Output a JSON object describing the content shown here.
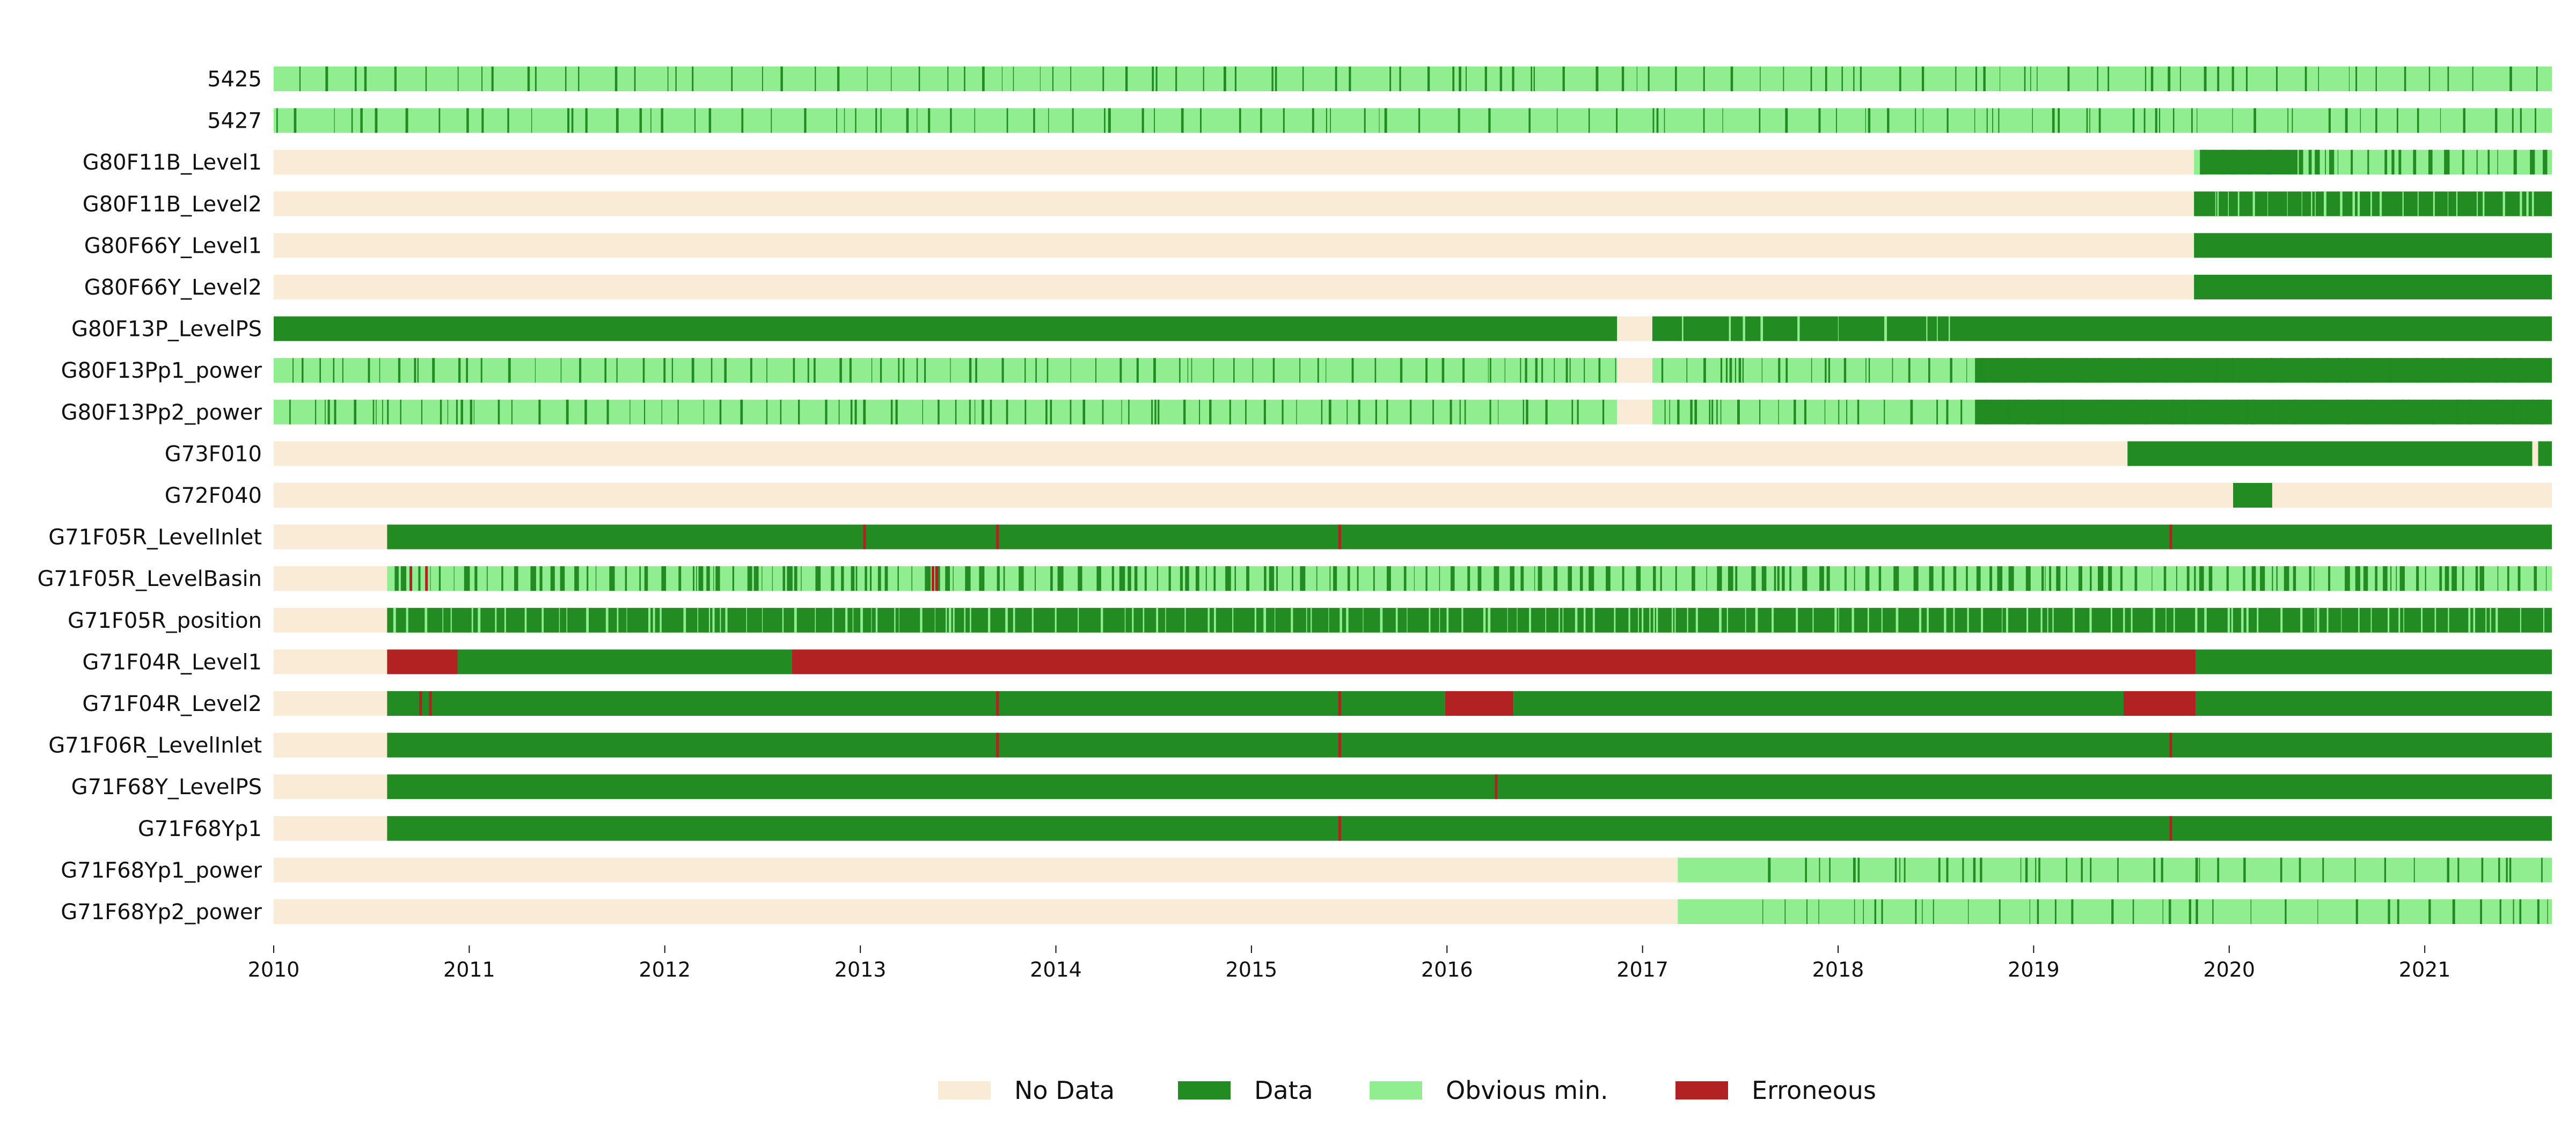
{
  "chart_data": {
    "type": "timeline",
    "xlabel": "",
    "ylabel": "",
    "x_range": [
      2010.0,
      2021.65
    ],
    "x_ticks": [
      "2010",
      "2011",
      "2012",
      "2013",
      "2014",
      "2015",
      "2016",
      "2017",
      "2018",
      "2019",
      "2020",
      "2021"
    ],
    "grid": false,
    "legend_position": "bottom-center",
    "legend": [
      {
        "key": "nodata",
        "label": "No Data",
        "color": "#faebd7"
      },
      {
        "key": "data",
        "label": "Data",
        "color": "#228b22"
      },
      {
        "key": "obvmin",
        "label": "Obvious min.",
        "color": "#90ee90"
      },
      {
        "key": "err",
        "label": "Erroneous",
        "color": "#b22222"
      }
    ],
    "series": [
      {
        "name": "5425",
        "segments": [
          [
            2010.0,
            2021.65,
            "obvmin"
          ]
        ],
        "texture": "data",
        "texture_density": 0.2
      },
      {
        "name": "5427",
        "segments": [
          [
            2010.0,
            2021.65,
            "obvmin"
          ]
        ],
        "texture": "data",
        "texture_density": 0.2
      },
      {
        "name": "G80F11B_Level1",
        "segments": [
          [
            2010.0,
            2019.82,
            "nodata"
          ],
          [
            2019.82,
            2019.85,
            "obvmin"
          ],
          [
            2019.85,
            2020.35,
            "data"
          ],
          [
            2020.35,
            2021.65,
            "obvmin"
          ]
        ],
        "texture": "data",
        "texture_density": 0.5,
        "texture_from": 2019.82
      },
      {
        "name": "G80F11B_Level2",
        "segments": [
          [
            2010.0,
            2019.82,
            "nodata"
          ],
          [
            2019.82,
            2021.65,
            "data"
          ]
        ],
        "texture": "obvmin",
        "texture_density": 0.35,
        "texture_from": 2019.82
      },
      {
        "name": "G80F66Y_Level1",
        "segments": [
          [
            2010.0,
            2019.82,
            "nodata"
          ],
          [
            2019.82,
            2021.65,
            "data"
          ]
        ]
      },
      {
        "name": "G80F66Y_Level2",
        "segments": [
          [
            2010.0,
            2019.82,
            "nodata"
          ],
          [
            2019.82,
            2021.65,
            "data"
          ]
        ]
      },
      {
        "name": "G80F13P_LevelPS",
        "segments": [
          [
            2010.0,
            2016.87,
            "data"
          ],
          [
            2016.87,
            2017.05,
            "nodata"
          ],
          [
            2017.05,
            2021.65,
            "data"
          ]
        ],
        "texture": "obvmin",
        "texture_density": 0.15,
        "texture_from": 2017.05,
        "texture_to": 2018.7
      },
      {
        "name": "G80F13Pp1_power",
        "segments": [
          [
            2010.0,
            2016.87,
            "obvmin"
          ],
          [
            2016.87,
            2017.05,
            "nodata"
          ],
          [
            2017.05,
            2018.7,
            "obvmin"
          ],
          [
            2018.7,
            2021.65,
            "data"
          ]
        ],
        "texture": "data",
        "texture_density": 0.3
      },
      {
        "name": "G80F13Pp2_power",
        "segments": [
          [
            2010.0,
            2016.87,
            "obvmin"
          ],
          [
            2016.87,
            2017.05,
            "nodata"
          ],
          [
            2017.05,
            2018.7,
            "obvmin"
          ],
          [
            2018.7,
            2021.65,
            "data"
          ]
        ],
        "texture": "data",
        "texture_density": 0.3
      },
      {
        "name": "G73F010",
        "segments": [
          [
            2010.0,
            2019.48,
            "nodata"
          ],
          [
            2019.48,
            2021.55,
            "data"
          ],
          [
            2021.55,
            2021.58,
            "nodata"
          ],
          [
            2021.58,
            2021.65,
            "data"
          ]
        ]
      },
      {
        "name": "G72F040",
        "segments": [
          [
            2010.0,
            2020.02,
            "nodata"
          ],
          [
            2020.02,
            2020.22,
            "data"
          ],
          [
            2020.22,
            2021.65,
            "nodata"
          ]
        ]
      },
      {
        "name": "G71F05R_LevelInlet",
        "segments": [
          [
            2010.0,
            2010.58,
            "nodata"
          ],
          [
            2010.58,
            2021.65,
            "data"
          ]
        ],
        "ticks": [
          [
            2013.02,
            "err"
          ],
          [
            2013.7,
            "err"
          ],
          [
            2015.45,
            "err"
          ],
          [
            2019.7,
            "err"
          ]
        ]
      },
      {
        "name": "G71F05R_LevelBasin",
        "segments": [
          [
            2010.0,
            2010.58,
            "nodata"
          ],
          [
            2010.58,
            2021.65,
            "obvmin"
          ]
        ],
        "texture": "data",
        "texture_density": 0.55,
        "ticks": [
          [
            2010.7,
            "err"
          ],
          [
            2010.78,
            "err"
          ],
          [
            2013.37,
            "err"
          ],
          [
            2013.39,
            "err"
          ]
        ]
      },
      {
        "name": "G71F05R_position",
        "segments": [
          [
            2010.0,
            2010.58,
            "nodata"
          ],
          [
            2010.58,
            2021.65,
            "data"
          ]
        ],
        "texture": "obvmin",
        "texture_density": 0.35
      },
      {
        "name": "G71F04R_Level1",
        "segments": [
          [
            2010.0,
            2010.58,
            "nodata"
          ],
          [
            2010.58,
            2010.94,
            "err"
          ],
          [
            2010.94,
            2012.65,
            "data"
          ],
          [
            2012.65,
            2019.83,
            "err"
          ],
          [
            2019.83,
            2021.65,
            "data"
          ]
        ]
      },
      {
        "name": "G71F04R_Level2",
        "segments": [
          [
            2010.0,
            2010.58,
            "nodata"
          ],
          [
            2010.58,
            2015.99,
            "data"
          ],
          [
            2015.99,
            2016.34,
            "err"
          ],
          [
            2016.34,
            2019.46,
            "data"
          ],
          [
            2019.46,
            2019.83,
            "err"
          ],
          [
            2019.83,
            2021.65,
            "data"
          ]
        ],
        "ticks": [
          [
            2010.75,
            "err"
          ],
          [
            2010.8,
            "err"
          ],
          [
            2013.7,
            "err"
          ],
          [
            2015.45,
            "err"
          ]
        ]
      },
      {
        "name": "G71F06R_LevelInlet",
        "segments": [
          [
            2010.0,
            2010.58,
            "nodata"
          ],
          [
            2010.58,
            2021.65,
            "data"
          ]
        ],
        "ticks": [
          [
            2013.7,
            "err"
          ],
          [
            2015.45,
            "err"
          ],
          [
            2019.7,
            "err"
          ]
        ]
      },
      {
        "name": "G71F68Y_LevelPS",
        "segments": [
          [
            2010.0,
            2010.58,
            "nodata"
          ],
          [
            2010.58,
            2021.65,
            "data"
          ]
        ],
        "ticks": [
          [
            2016.25,
            "err"
          ]
        ]
      },
      {
        "name": "G71F68Yp1",
        "segments": [
          [
            2010.0,
            2010.58,
            "nodata"
          ],
          [
            2010.58,
            2021.65,
            "data"
          ]
        ],
        "ticks": [
          [
            2015.45,
            "err"
          ],
          [
            2019.7,
            "err"
          ]
        ]
      },
      {
        "name": "G71F68Yp1_power",
        "segments": [
          [
            2010.0,
            2017.18,
            "nodata"
          ],
          [
            2017.18,
            2021.65,
            "obvmin"
          ]
        ],
        "texture": "data",
        "texture_density": 0.2,
        "texture_from": 2017.55
      },
      {
        "name": "G71F68Yp2_power",
        "segments": [
          [
            2010.0,
            2017.18,
            "nodata"
          ],
          [
            2017.18,
            2021.65,
            "obvmin"
          ]
        ],
        "texture": "data",
        "texture_density": 0.2,
        "texture_from": 2017.55
      }
    ]
  }
}
